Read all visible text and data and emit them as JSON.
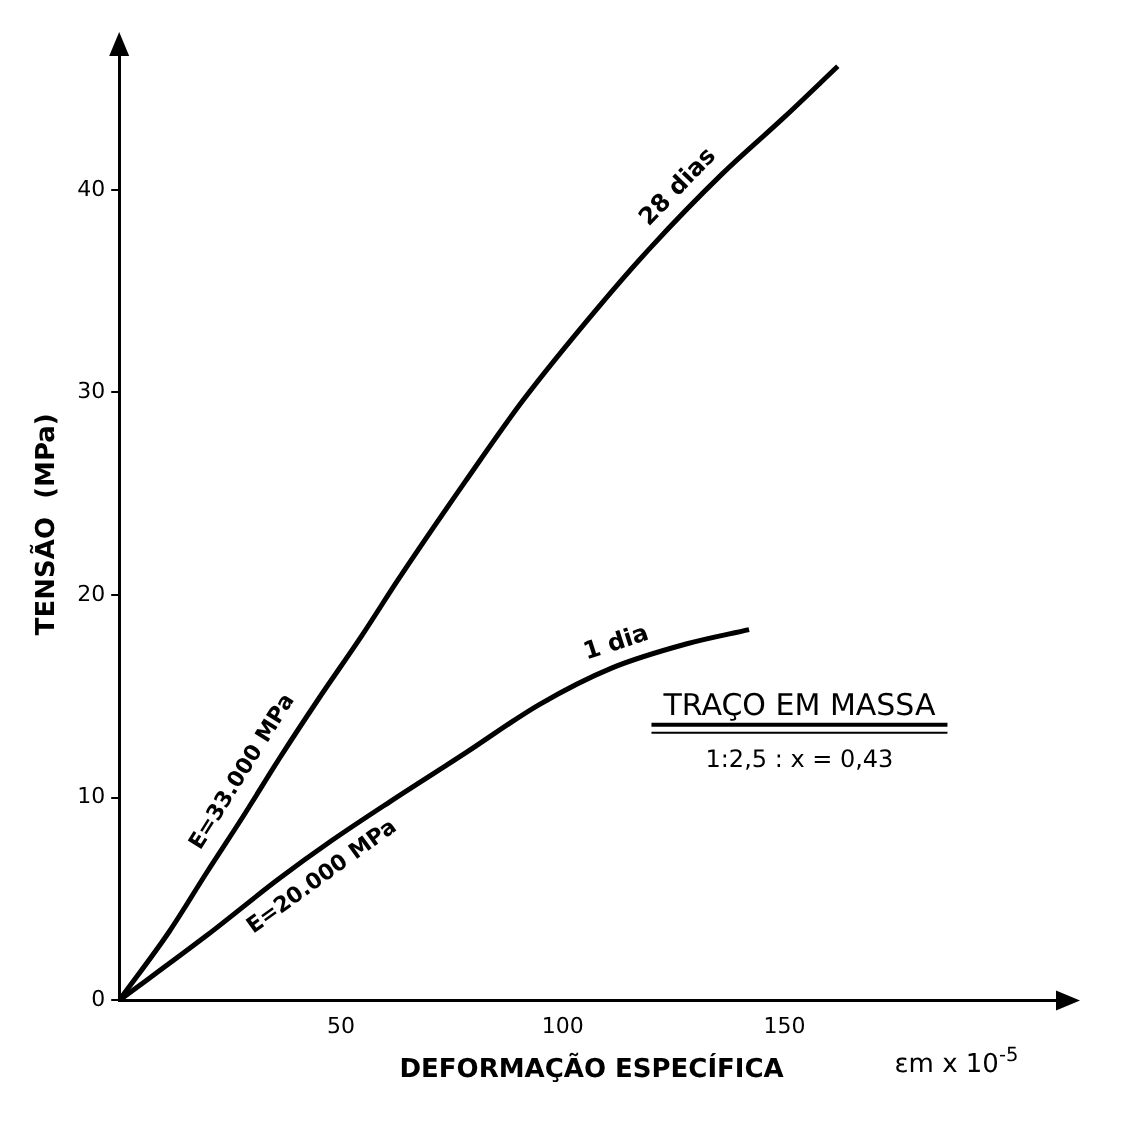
{
  "chart_data": {
    "type": "line",
    "xlabel": "DEFORMAÇÃO ESPECÍFICA",
    "ylabel": "TENSÃO  (MPa)",
    "xlim": [
      0,
      213
    ],
    "ylim": [
      0,
      47
    ],
    "xticks": [
      50,
      100,
      150
    ],
    "yticks": [
      0,
      10,
      20,
      30,
      40
    ],
    "grid": false,
    "legend": false,
    "marker": "none",
    "line_style": "solid",
    "series": [
      {
        "name": "28 dias",
        "color": "#000000",
        "x": [
          0,
          11.3,
          19.7,
          28,
          36,
          44.7,
          54.7,
          63,
          78,
          91,
          108,
          120,
          136,
          150,
          162
        ],
        "values": [
          0,
          3.4,
          6.3,
          9.1,
          11.9,
          14.8,
          18,
          20.8,
          25.6,
          29.6,
          34.2,
          37.2,
          40.8,
          43.6,
          46.1
        ]
      },
      {
        "name": "1 dia",
        "color": "#000000",
        "x": [
          0,
          19.7,
          36,
          48,
          61,
          78,
          94.7,
          111,
          128,
          142
        ],
        "values": [
          0,
          3.2,
          6,
          7.9,
          9.8,
          12.2,
          14.6,
          16.4,
          17.6,
          18.3
        ]
      }
    ],
    "annotations": [
      "E=33.000 MPa",
      "E=20.000 MPa",
      "TRAÇO EM MASSA",
      "1:2,5 : x = 0,43",
      "εm x 10$^{-5}$"
    ]
  }
}
